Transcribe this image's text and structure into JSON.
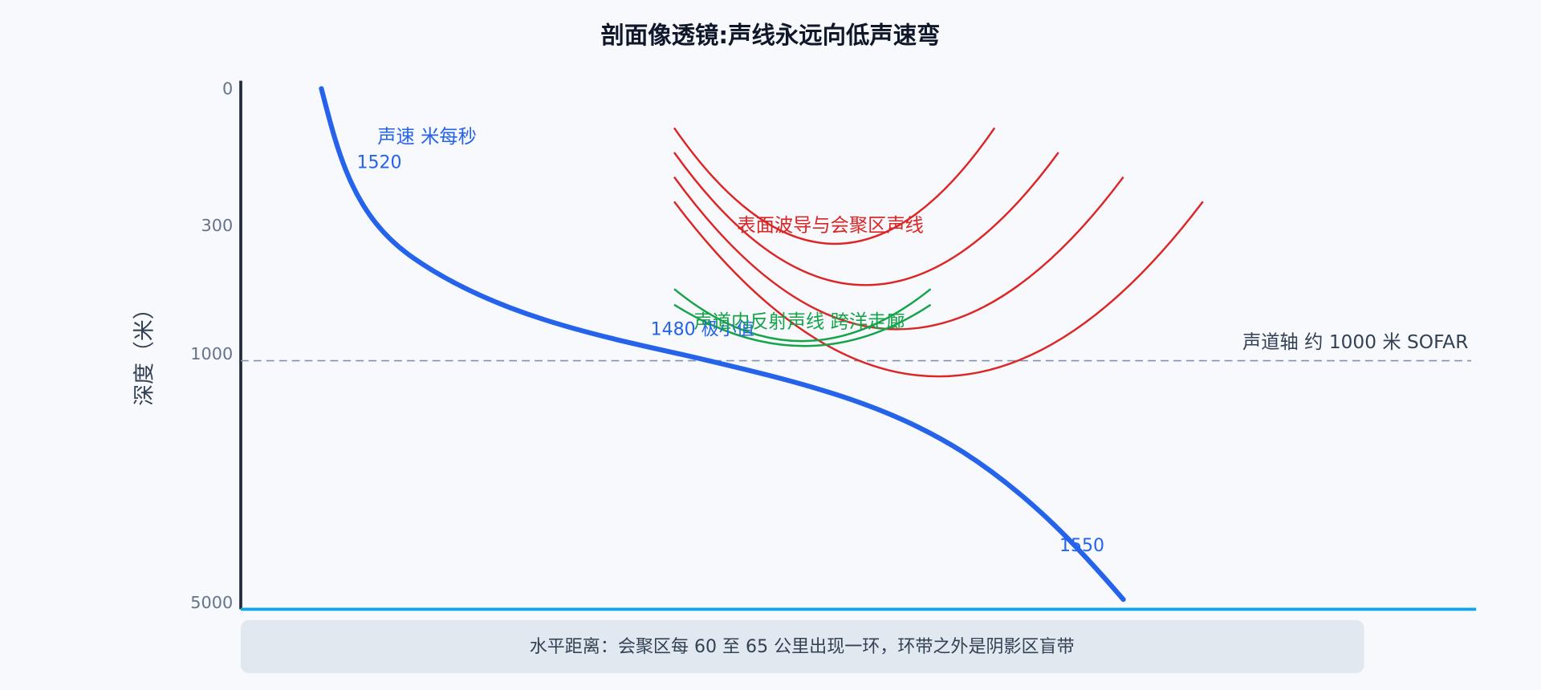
{
  "title": "剖面像透镜:声线永远向低声速弯",
  "axis": {
    "label": "深度（米）",
    "ticks": [
      0,
      300,
      1000,
      5000
    ]
  },
  "speed_curve": {
    "label": "声速 米每秒",
    "top": "1520",
    "min": "1480 极小值",
    "bottom": "1550"
  },
  "sofar": "声道轴 约 1000 米 SOFAR",
  "red_rays": "表面波导与会聚区声线",
  "green_rays": "声道内反射声线 跨洋走廊",
  "footer": "水平距离：会聚区每 60 至 65 公里出现一环，环带之外是阴影区盲带"
}
